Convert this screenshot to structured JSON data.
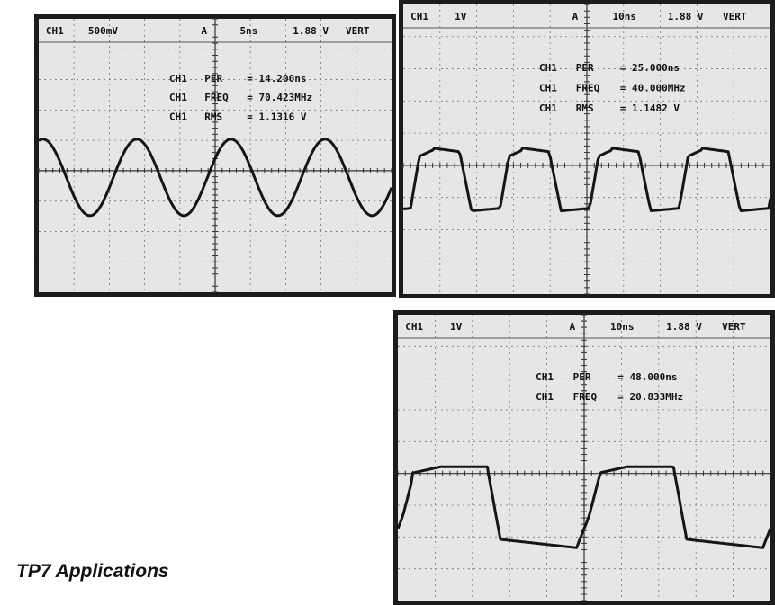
{
  "scopes": [
    {
      "header": [
        "CH1",
        "500mV",
        "A",
        "5ns",
        "1.88 V",
        "VERT"
      ],
      "readouts": [
        [
          "CH1",
          "PER",
          "= 14.200ns"
        ],
        [
          "CH1",
          "FREQ",
          "= 70.423MHz"
        ],
        [
          "CH1",
          "RMS",
          "= 1.1316 V"
        ]
      ]
    },
    {
      "header": [
        "CH1",
        "1V",
        "A",
        "10ns",
        "1.88 V",
        "VERT"
      ],
      "readouts": [
        [
          "CH1",
          "PER",
          "= 25.000ns"
        ],
        [
          "CH1",
          "FREQ",
          "= 40.000MHz"
        ],
        [
          "CH1",
          "RMS",
          "= 1.1482 V"
        ]
      ]
    },
    {
      "header": [
        "CH1",
        "1V",
        "A",
        "10ns",
        "1.88 V",
        "VERT"
      ],
      "readouts": [
        [
          "CH1",
          "PER",
          "= 48.000ns"
        ],
        [
          "CH1",
          "FREQ",
          "= 20.833MHz"
        ]
      ]
    }
  ],
  "caption": "TP7 Applications"
}
